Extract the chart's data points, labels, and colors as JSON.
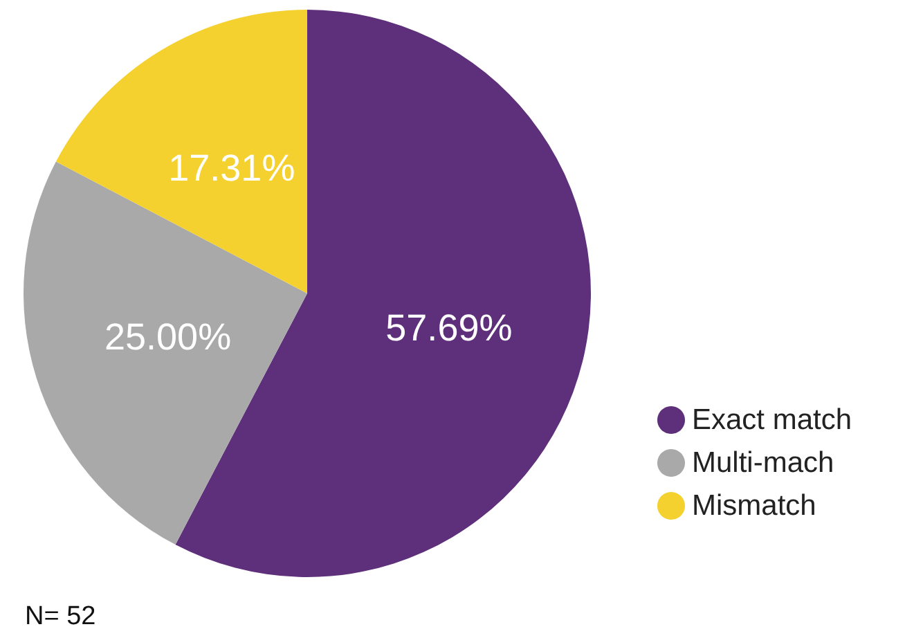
{
  "chart_data": {
    "type": "pie",
    "categories": [
      "Exact match",
      "Multi-mach",
      "Mismatch"
    ],
    "values": [
      57.69,
      25.0,
      17.31
    ],
    "colors": [
      "#5e2f7a",
      "#a9a9a9",
      "#f4d12f"
    ],
    "value_labels": [
      "57.69%",
      "25.00%",
      "17.31%"
    ],
    "legend": "right",
    "annotations": [
      "N= 52"
    ]
  }
}
